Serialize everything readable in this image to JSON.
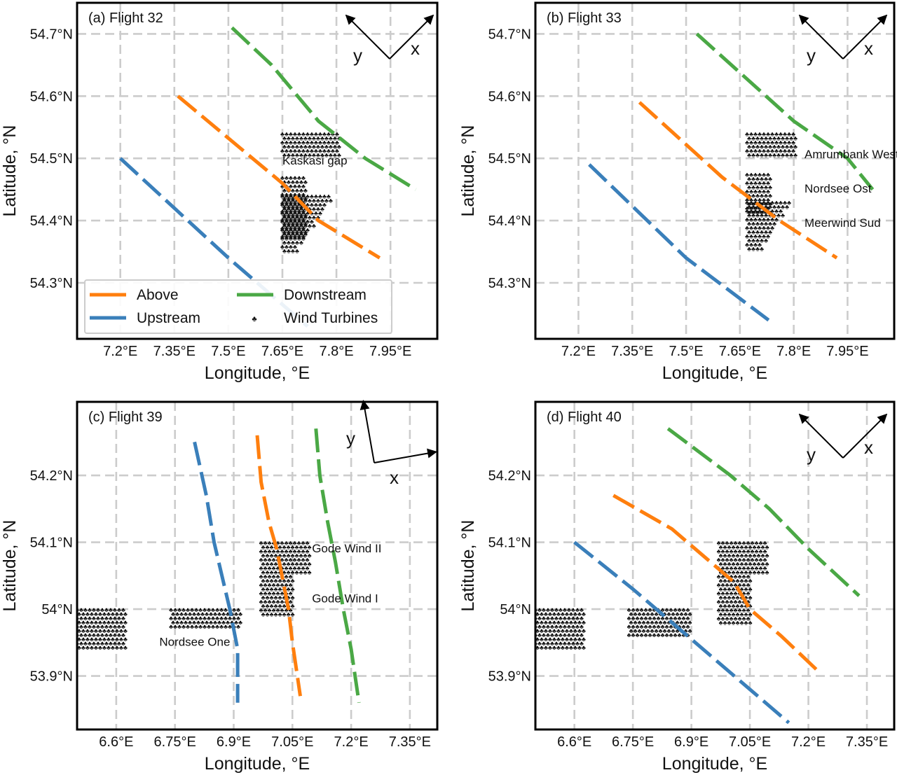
{
  "figure": {
    "xlabel": "Longitude, °E",
    "ylabel": "Latitude, °N",
    "colors": {
      "above": "#ff7f0e",
      "upstream": "#3a7fba",
      "downstream": "#4aa845",
      "turbines": "#6b1c1c"
    }
  },
  "legend": {
    "items": [
      {
        "key": "above",
        "label": "Above"
      },
      {
        "key": "downstream",
        "label": "Downstream"
      },
      {
        "key": "upstream",
        "label": "Upstream"
      },
      {
        "key": "turbines",
        "label": "Wind Turbines"
      }
    ]
  },
  "chart_data": [
    {
      "type": "map",
      "title": "(a) Flight 32",
      "xlim": [
        7.08,
        8.08
      ],
      "ylim": [
        54.21,
        54.75
      ],
      "xticks": [
        7.2,
        7.35,
        7.5,
        7.65,
        7.8,
        7.95
      ],
      "xtick_labels": [
        "7.2°E",
        "7.35°E",
        "7.5°E",
        "7.65°E",
        "7.8°E",
        "7.95°E"
      ],
      "yticks": [
        54.3,
        54.4,
        54.5,
        54.6,
        54.7
      ],
      "ytick_labels": [
        "54.3°N",
        "54.4°N",
        "54.5°N",
        "54.6°N",
        "54.7°N"
      ],
      "axes_arrows": {
        "x_label": "x",
        "y_label": "y",
        "x_bearing_deg": 45,
        "y_bearing_deg": -45
      },
      "tracks": [
        {
          "key": "upstream",
          "points": [
            [
              7.2,
              54.5
            ],
            [
              7.5,
              54.34
            ],
            [
              7.72,
              54.23
            ]
          ]
        },
        {
          "key": "above",
          "points": [
            [
              7.36,
              54.6
            ],
            [
              7.65,
              54.46
            ],
            [
              7.75,
              54.4
            ],
            [
              7.92,
              54.34
            ]
          ]
        },
        {
          "key": "downstream",
          "points": [
            [
              7.51,
              54.71
            ],
            [
              7.62,
              54.65
            ],
            [
              7.75,
              54.56
            ],
            [
              7.88,
              54.5
            ],
            [
              8.02,
              54.45
            ]
          ]
        }
      ],
      "farms": [
        {
          "name": "",
          "kind": "rect",
          "lon": [
            7.65,
            7.81
          ],
          "lat": [
            54.505,
            54.54
          ]
        },
        {
          "name": "",
          "kind": "rect",
          "lon": [
            7.65,
            7.72
          ],
          "lat": [
            54.37,
            54.47
          ]
        },
        {
          "name": "",
          "kind": "tri",
          "lon": [
            7.65,
            7.79
          ],
          "lat": [
            54.35,
            54.44
          ]
        }
      ],
      "labels": [
        {
          "text": "Kaskasi gap",
          "lon": 7.65,
          "lat": 54.49
        }
      ]
    },
    {
      "type": "map",
      "title": "(b) Flight 33",
      "xlim": [
        7.08,
        8.08
      ],
      "ylim": [
        54.21,
        54.75
      ],
      "xticks": [
        7.2,
        7.35,
        7.5,
        7.65,
        7.8,
        7.95
      ],
      "xtick_labels": [
        "7.2°E",
        "7.35°E",
        "7.5°E",
        "7.65°E",
        "7.8°E",
        "7.95°E"
      ],
      "yticks": [
        54.3,
        54.4,
        54.5,
        54.6,
        54.7
      ],
      "ytick_labels": [
        "54.3°N",
        "54.4°N",
        "54.5°N",
        "54.6°N",
        "54.7°N"
      ],
      "axes_arrows": {
        "x_label": "x",
        "y_label": "y",
        "x_bearing_deg": 45,
        "y_bearing_deg": -45
      },
      "tracks": [
        {
          "key": "upstream",
          "points": [
            [
              7.23,
              54.49
            ],
            [
              7.5,
              54.34
            ],
            [
              7.73,
              54.24
            ]
          ]
        },
        {
          "key": "above",
          "points": [
            [
              7.37,
              54.59
            ],
            [
              7.6,
              54.47
            ],
            [
              7.76,
              54.4
            ],
            [
              7.92,
              54.34
            ]
          ]
        },
        {
          "key": "downstream",
          "points": [
            [
              7.53,
              54.7
            ],
            [
              7.8,
              54.56
            ],
            [
              7.95,
              54.5
            ],
            [
              8.02,
              54.45
            ]
          ]
        }
      ],
      "farms": [
        {
          "name": "Amrumbank West",
          "kind": "rect",
          "lon": [
            7.67,
            7.81
          ],
          "lat": [
            54.505,
            54.54
          ]
        },
        {
          "name": "Nordsee Ost",
          "kind": "rect",
          "lon": [
            7.67,
            7.74
          ],
          "lat": [
            54.41,
            54.475
          ]
        },
        {
          "name": "Meerwind Sud",
          "kind": "tri",
          "lon": [
            7.67,
            7.79
          ],
          "lat": [
            54.35,
            54.43
          ]
        }
      ],
      "labels": [
        {
          "text": "Amrumbank West",
          "lon": 7.83,
          "lat": 54.5
        },
        {
          "text": "Nordsee Ost",
          "lon": 7.83,
          "lat": 54.445
        },
        {
          "text": "Meerwind Sud",
          "lon": 7.83,
          "lat": 54.39
        }
      ]
    },
    {
      "type": "map",
      "title": "(c) Flight 39",
      "xlim": [
        6.5,
        7.42
      ],
      "ylim": [
        53.82,
        54.31
      ],
      "xticks": [
        6.6,
        6.75,
        6.9,
        7.05,
        7.2,
        7.35
      ],
      "xtick_labels": [
        "6.6°E",
        "6.75°E",
        "6.9°E",
        "7.05°E",
        "7.2°E",
        "7.35°E"
      ],
      "yticks": [
        53.9,
        54.0,
        54.1,
        54.2
      ],
      "ytick_labels": [
        "53.9°N",
        "54°N",
        "54.1°N",
        "54.2°N"
      ],
      "axes_arrows": {
        "x_label": "x",
        "y_label": "y",
        "x_bearing_deg": 80,
        "y_bearing_deg": -10
      },
      "tracks": [
        {
          "key": "upstream",
          "points": [
            [
              6.8,
              54.25
            ],
            [
              6.83,
              54.17
            ],
            [
              6.85,
              54.1
            ],
            [
              6.89,
              54.0
            ],
            [
              6.91,
              53.94
            ],
            [
              6.91,
              53.86
            ]
          ]
        },
        {
          "key": "above",
          "points": [
            [
              6.96,
              54.26
            ],
            [
              6.97,
              54.19
            ],
            [
              6.99,
              54.13
            ],
            [
              7.01,
              54.09
            ],
            [
              7.04,
              54.0
            ],
            [
              7.05,
              53.95
            ],
            [
              7.07,
              53.87
            ]
          ]
        },
        {
          "key": "downstream",
          "points": [
            [
              7.11,
              54.27
            ],
            [
              7.12,
              54.2
            ],
            [
              7.14,
              54.13
            ],
            [
              7.16,
              54.07
            ],
            [
              7.18,
              54.0
            ],
            [
              7.2,
              53.94
            ],
            [
              7.22,
              53.86
            ]
          ]
        }
      ],
      "farms": [
        {
          "name": "Nordsee One",
          "kind": "rect",
          "lon": [
            6.74,
            6.92
          ],
          "lat": [
            53.97,
            54.0
          ]
        },
        {
          "name": "",
          "kind": "rect",
          "lon": [
            6.5,
            6.62
          ],
          "lat": [
            53.94,
            54.0
          ]
        },
        {
          "name": "Gode Wind II",
          "kind": "rect",
          "lon": [
            6.97,
            7.09
          ],
          "lat": [
            54.05,
            54.1
          ]
        },
        {
          "name": "Gode Wind I",
          "kind": "rect",
          "lon": [
            6.97,
            7.05
          ],
          "lat": [
            53.99,
            54.05
          ]
        }
      ],
      "labels": [
        {
          "text": "Gode Wind II",
          "lon": 7.1,
          "lat": 54.085
        },
        {
          "text": "Gode Wind I",
          "lon": 7.1,
          "lat": 54.01
        },
        {
          "text": "Nordsee One",
          "lon": 6.71,
          "lat": 53.945
        }
      ]
    },
    {
      "type": "map",
      "title": "(d) Flight 40",
      "xlim": [
        6.5,
        7.42
      ],
      "ylim": [
        53.82,
        54.31
      ],
      "xticks": [
        6.6,
        6.75,
        6.9,
        7.05,
        7.2,
        7.35
      ],
      "xtick_labels": [
        "6.6°E",
        "6.75°E",
        "6.9°E",
        "7.05°E",
        "7.2°E",
        "7.35°E"
      ],
      "yticks": [
        53.9,
        54.0,
        54.1,
        54.2
      ],
      "ytick_labels": [
        "53.9°N",
        "54°N",
        "54.1°N",
        "54.2°N"
      ],
      "axes_arrows": {
        "x_label": "x",
        "y_label": "y",
        "x_bearing_deg": 45,
        "y_bearing_deg": -45
      },
      "tracks": [
        {
          "key": "upstream",
          "points": [
            [
              6.6,
              54.1
            ],
            [
              6.75,
              54.03
            ],
            [
              6.85,
              53.98
            ],
            [
              6.95,
              53.93
            ],
            [
              7.05,
              53.88
            ],
            [
              7.15,
              53.83
            ]
          ]
        },
        {
          "key": "above",
          "points": [
            [
              6.7,
              54.17
            ],
            [
              6.85,
              54.12
            ],
            [
              6.95,
              54.07
            ],
            [
              7.01,
              54.04
            ],
            [
              7.05,
              54.0
            ],
            [
              7.13,
              53.96
            ],
            [
              7.22,
              53.91
            ]
          ]
        },
        {
          "key": "downstream",
          "points": [
            [
              6.84,
              54.27
            ],
            [
              7.0,
              54.2
            ],
            [
              7.1,
              54.15
            ],
            [
              7.2,
              54.09
            ],
            [
              7.33,
              54.02
            ]
          ]
        }
      ],
      "farms": [
        {
          "name": "",
          "kind": "rect",
          "lon": [
            6.74,
            6.9
          ],
          "lat": [
            53.96,
            54.0
          ]
        },
        {
          "name": "",
          "kind": "rect",
          "lon": [
            6.5,
            6.62
          ],
          "lat": [
            53.94,
            54.0
          ]
        },
        {
          "name": "",
          "kind": "rect",
          "lon": [
            6.97,
            7.09
          ],
          "lat": [
            54.05,
            54.1
          ]
        },
        {
          "name": "",
          "kind": "rect",
          "lon": [
            6.97,
            7.05
          ],
          "lat": [
            53.98,
            54.05
          ]
        }
      ],
      "labels": []
    }
  ]
}
